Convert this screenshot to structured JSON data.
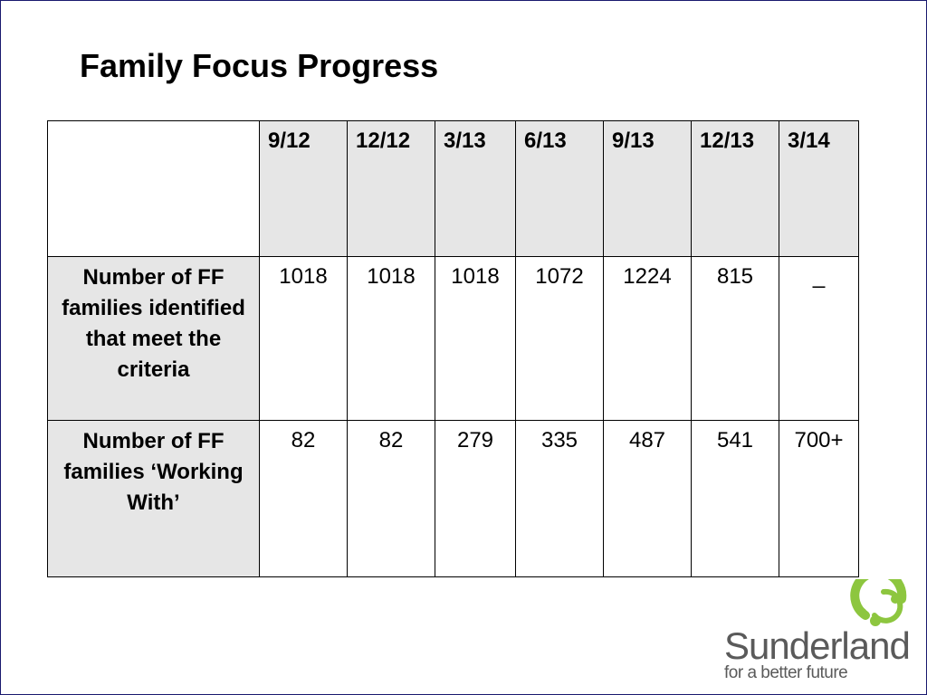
{
  "slide": {
    "title": "Family Focus Progress"
  },
  "table": {
    "columns": [
      "9/12",
      "12/12",
      "3/13",
      "6/13",
      "9/13",
      "12/13",
      "3/14"
    ],
    "rows": [
      {
        "label": "Number of FF families identified that meet the criteria",
        "values": [
          "1018",
          "1018",
          "1018",
          "1072",
          "1224",
          "815",
          "_"
        ]
      },
      {
        "label": "Number of FF families ‘Working With’",
        "values": [
          "82",
          "82",
          "279",
          "335",
          "487",
          "541",
          "700+"
        ]
      }
    ]
  },
  "logo": {
    "name": "Sunderland",
    "tagline": "for a better future",
    "colors": {
      "accent": "#8dc63f",
      "text": "#5a5a5a"
    }
  }
}
